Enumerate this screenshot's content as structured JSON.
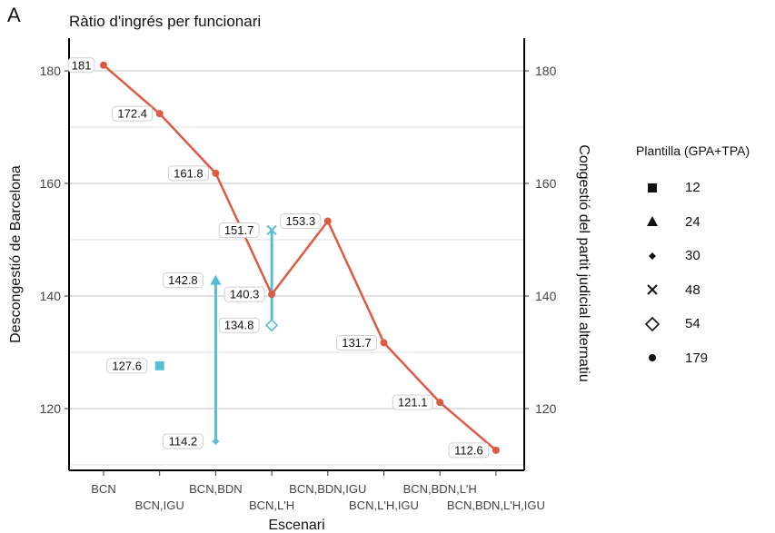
{
  "panel_tag": "A",
  "colors": {
    "blue": "#56bdd3",
    "red": "#dd5a43",
    "grid": "#e1e1e1",
    "axis": "#000000"
  },
  "chart_data": {
    "type": "line",
    "title": "Ràtio d'ingrés per funcionari",
    "xlabel": "Escenari",
    "ylabel_left": "Descongestió de Barcelona",
    "ylabel_right": "Congestió del partit judicial alternatiu",
    "categories": [
      "BCN",
      "BCN,IGU",
      "BCN,BDN",
      "BCN,L'H",
      "BCN,BDN,IGU",
      "BCN,L'H,IGU",
      "BCN,BDN,L'H",
      "BCN,BDN,L'H,IGU"
    ],
    "ylim": [
      110,
      182
    ],
    "yticks": [
      120,
      140,
      160,
      180
    ],
    "grid": true,
    "series": [
      {
        "color": "#dd5a43",
        "points": [
          {
            "x": "BCN",
            "y": 181,
            "label": "181"
          },
          {
            "x": "BCN,IGU",
            "y": 172.4,
            "label": "172.4"
          },
          {
            "x": "BCN,BDN",
            "y": 161.8,
            "label": "161.8"
          },
          {
            "x": "BCN,L'H",
            "y": 140.3,
            "label": "140.3"
          },
          {
            "x": "BCN,BDN,IGU",
            "y": 153.3,
            "label": "153.3"
          },
          {
            "x": "BCN,L'H,IGU",
            "y": 131.7,
            "label": "131.7"
          },
          {
            "x": "BCN,BDN,L'H",
            "y": 121.1,
            "label": "121.1"
          },
          {
            "x": "BCN,BDN,L'H,IGU",
            "y": 112.6,
            "label": "112.6"
          }
        ],
        "shape": "circle"
      },
      {
        "color": "#56bdd3",
        "points": [
          {
            "x": "BCN,IGU",
            "y": 127.6,
            "label": "127.6",
            "shape": "square"
          },
          {
            "x": "BCN,BDN",
            "y": 142.8,
            "label": "142.8",
            "shape": "triangle"
          },
          {
            "x": "BCN,BDN",
            "y": 114.2,
            "label": "114.2",
            "shape": "diamond"
          },
          {
            "x": "BCN,L'H",
            "y": 151.7,
            "label": "151.7",
            "shape": "cross"
          },
          {
            "x": "BCN,L'H",
            "y": 134.8,
            "label": "134.8",
            "shape": "open-diamond"
          }
        ],
        "segments": [
          [
            "BCN,BDN",
            142.8,
            114.2
          ],
          [
            "BCN,L'H",
            151.7,
            134.8
          ]
        ]
      }
    ],
    "legend": {
      "title": "Plantilla (GPA+TPA)",
      "position": "right",
      "items": [
        {
          "label": "12",
          "shape": "square"
        },
        {
          "label": "24",
          "shape": "triangle"
        },
        {
          "label": "30",
          "shape": "diamond"
        },
        {
          "label": "48",
          "shape": "cross"
        },
        {
          "label": "54",
          "shape": "open-diamond"
        },
        {
          "label": "179",
          "shape": "circle"
        }
      ]
    }
  }
}
